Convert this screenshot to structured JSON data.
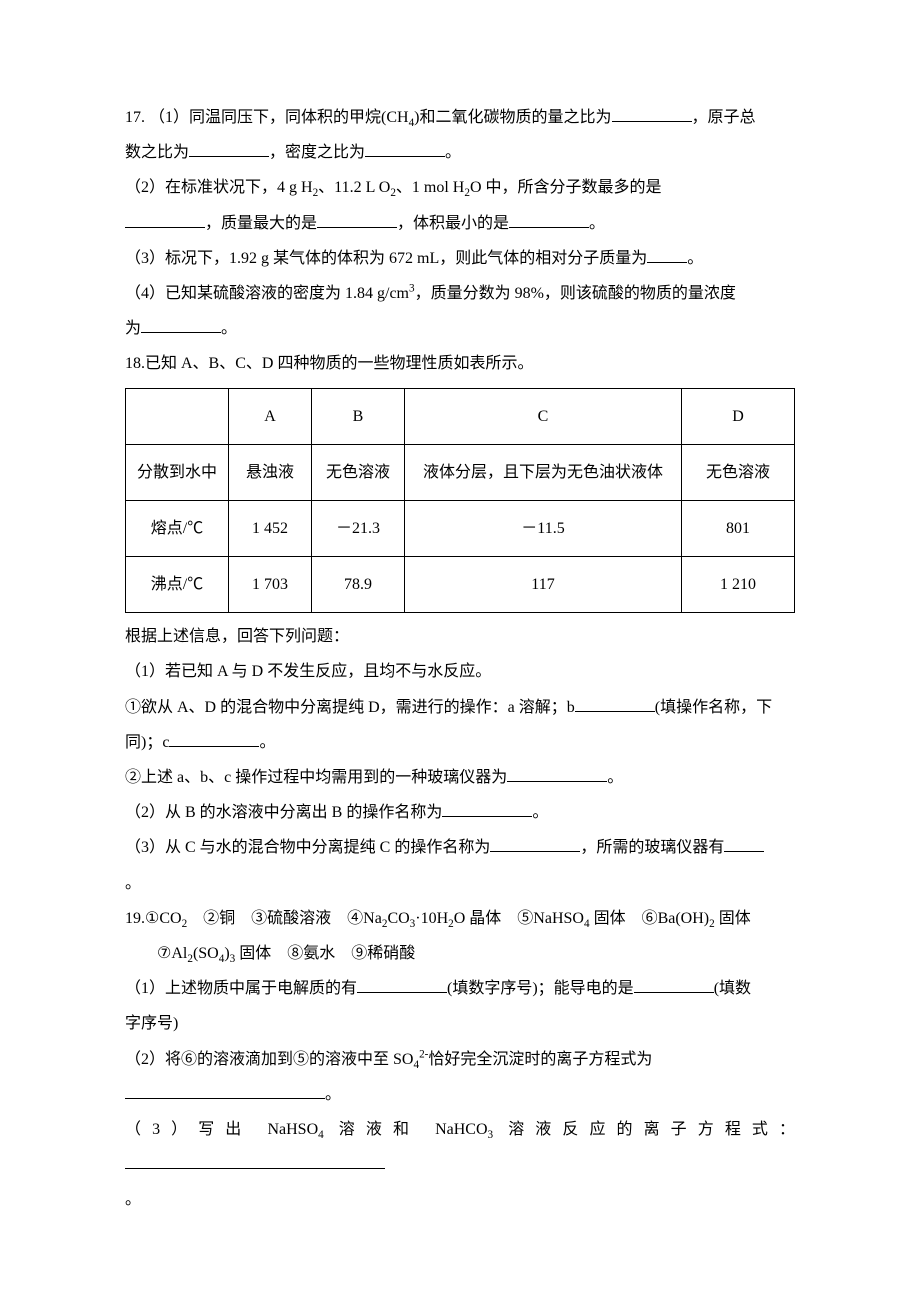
{
  "q17": {
    "line1_a": "17.",
    "line1_b": "（1）同温同压下，同体积的甲烷(CH",
    "line1_c": ")和二氧化碳物质的量之比为",
    "line1_d": "，原子总",
    "line2_a": "数之比为",
    "line2_b": "，密度之比为",
    "line2_c": "。",
    "line3_a": "（2）在标准状况下，4 g H",
    "line3_b": "、11.2 L O",
    "line3_c": "、1 mol H",
    "line3_d": "O 中，所含分子数最多的是",
    "line4_a": "，质量最大的是",
    "line4_b": "，体积最小的是",
    "line4_c": "。",
    "line5_a": "（3）标况下，1.92 g 某气体的体积为 672 mL，则此气体的相对分子质量为",
    "line5_b": "。",
    "line6_a": "（4）已知某硫酸溶液的密度为 1.84 g/cm",
    "line6_b": "，质量分数为 98%，则该硫酸的物质的量浓度",
    "line7_a": "为",
    "line7_b": "。"
  },
  "q18": {
    "intro": "已知 A、B、C、D 四种物质的一些物理性质如表所示。",
    "qnum": "18.",
    "table": {
      "cols": [
        "",
        "A",
        "B",
        "C",
        "D"
      ],
      "rows": [
        [
          "分散到水中",
          "悬浊液",
          "无色溶液",
          "液体分层，且下层为无色油状液体",
          "无色溶液"
        ],
        [
          "熔点/℃",
          "1 452",
          "－21.3",
          "－11.5",
          "801"
        ],
        [
          "沸点/℃",
          "1 703",
          "78.9",
          "117",
          "1 210"
        ]
      ]
    },
    "after_table": "根据上述信息，回答下列问题：",
    "p1": "（1）若已知 A 与 D 不发生反应，且均不与水反应。",
    "p1a_a": "①欲从 A、D 的混合物中分离提纯 D，需进行的操作：a 溶解；b",
    "p1a_b": "(填操作名称，下",
    "p1a_c": "同)；c",
    "p1a_d": "。",
    "p1b_a": "②上述 a、b、c 操作过程中均需用到的一种玻璃仪器为",
    "p1b_b": "。",
    "p2_a": "（2）从 B 的水溶液中分离出 B 的操作名称为",
    "p2_b": "。",
    "p3_a": "（3）从 C 与水的混合物中分离提纯 C 的操作名称为",
    "p3_b": "，所需的玻璃仪器有",
    "p3_c": "。"
  },
  "q19": {
    "qnum": "19.",
    "items_a": "①CO",
    "items_b": "　②铜　③硫酸溶液　④Na",
    "items_c": "CO",
    "items_d": "·10H",
    "items_e": "O 晶体　⑤NaHSO",
    "items_f": " 固体　⑥Ba(OH)",
    "items_g": " 固体",
    "line2_a": "⑦Al",
    "line2_b": "(SO",
    "line2_c": ")",
    "line2_d": " 固体　⑧氨水　⑨稀硝酸",
    "p1_a": "（1）上述物质中属于电解质的有",
    "p1_b": "(填数字序号)；能导电的是",
    "p1_c": "(填数",
    "p1_d": "字序号)",
    "p2_a": "（2）将⑥的溶液滴加到⑤的溶液中至 SO",
    "p2_b": "恰好完全沉淀时的离子方程式为",
    "p2_c": "。",
    "p3_a": "（3）写出 NaHSO",
    "p3_b": " 溶液和 NaHCO",
    "p3_c": " 溶液反应的离子方程式：",
    "p3_d": "。"
  }
}
